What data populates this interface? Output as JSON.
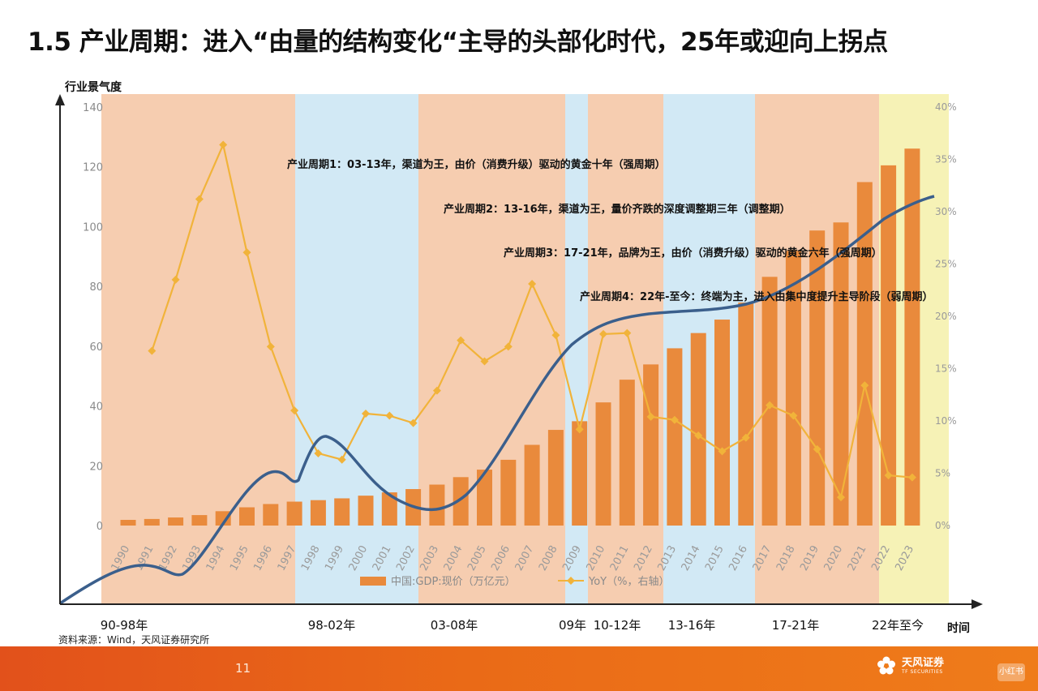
{
  "title": "1.5 产业周期：进入“由量的结构变化“主导的头部化时代，25年或迎向上拐点",
  "source": "资料来源：Wind，天风证券研究所",
  "page_number": "11",
  "brand": {
    "name": "天风证券",
    "sub": "TF SECURITIES",
    "badge": "小红书"
  },
  "colors": {
    "strong": "#f6cdb0",
    "weak": "#d2e9f5",
    "current": "#f6f2b6",
    "bar": "#e98a3c",
    "yoy": "#f1b33a",
    "curve": "#3b5f8c",
    "axis": "#222222"
  },
  "chart_data": {
    "type": "bar",
    "categories": [
      "1990",
      "1991",
      "1992",
      "1993",
      "1994",
      "1995",
      "1996",
      "1997",
      "1998",
      "1999",
      "2000",
      "2001",
      "2002",
      "2003",
      "2004",
      "2005",
      "2006",
      "2007",
      "2008",
      "2009",
      "2010",
      "2011",
      "2012",
      "2013",
      "2014",
      "2015",
      "2016",
      "2017",
      "2018",
      "2019",
      "2020",
      "2021",
      "2022",
      "2023"
    ],
    "series": [
      {
        "name": "中国:GDP:现价（万亿元）",
        "axis": "left",
        "values": [
          1.9,
          2.2,
          2.7,
          3.5,
          4.8,
          6.1,
          7.2,
          8.0,
          8.5,
          9.1,
          10.0,
          11.1,
          12.2,
          13.7,
          16.2,
          18.7,
          22.0,
          27.0,
          32.0,
          34.9,
          41.2,
          48.8,
          53.9,
          59.3,
          64.4,
          68.9,
          74.6,
          83.2,
          91.9,
          98.7,
          101.4,
          114.9,
          120.5,
          126.1
        ]
      },
      {
        "name": "YoY（%，右轴）",
        "axis": "right",
        "values": [
          null,
          16.7,
          23.5,
          31.2,
          36.4,
          26.1,
          17.1,
          11.0,
          6.9,
          6.3,
          10.7,
          10.5,
          9.8,
          12.9,
          17.7,
          15.7,
          17.1,
          23.1,
          18.2,
          9.2,
          18.3,
          18.4,
          10.4,
          10.1,
          8.6,
          7.1,
          8.4,
          11.5,
          10.5,
          7.3,
          2.7,
          13.4,
          4.8,
          4.6
        ]
      }
    ],
    "y_left": {
      "label": "行业景气度",
      "min": 0,
      "max": 140,
      "ticks": [
        "0",
        "20",
        "40",
        "60",
        "80",
        "100",
        "120",
        "140"
      ]
    },
    "y_right": {
      "min": 0,
      "max": 40,
      "ticks": [
        "0%",
        "5%",
        "10%",
        "15%",
        "20%",
        "25%",
        "30%",
        "35%",
        "40%"
      ]
    },
    "xlabel": "时间",
    "periods": [
      {
        "label": "90-98年",
        "from": "1990",
        "to": "1997",
        "phase": "strong"
      },
      {
        "label": "98-02年",
        "from": "1998",
        "to": "2002",
        "phase": "weak"
      },
      {
        "label": "03-08年",
        "from": "2003",
        "to": "2008",
        "phase": "strong"
      },
      {
        "label": "09年",
        "from": "2009",
        "to": "2009",
        "phase": "weak"
      },
      {
        "label": "10-12年",
        "from": "2010",
        "to": "2012",
        "phase": "strong"
      },
      {
        "label": "13-16年",
        "from": "2013",
        "to": "2016",
        "phase": "weak"
      },
      {
        "label": "17-21年",
        "from": "2017",
        "to": "2021",
        "phase": "strong"
      },
      {
        "label": "22年至今",
        "from": "2022",
        "to": "2023",
        "phase": "current"
      }
    ],
    "annotations": [
      "产业周期1：03-13年，渠道为王，由价（消费升级）驱动的黄金十年（强周期）",
      "产业周期2：13-16年，渠道为王，量价齐跌的深度调整期三年（调整期）",
      "产业周期3：17-21年，品牌为王，由价（消费升级）驱动的黄金六年（强周期）",
      "产业周期4：22年-至今：终端为主，进入由集中度提升主导阶段（弱周期）"
    ],
    "legend": [
      "中国:GDP:现价（万亿元）",
      "YoY（%，右轴）"
    ],
    "legend_position": "bottom"
  }
}
